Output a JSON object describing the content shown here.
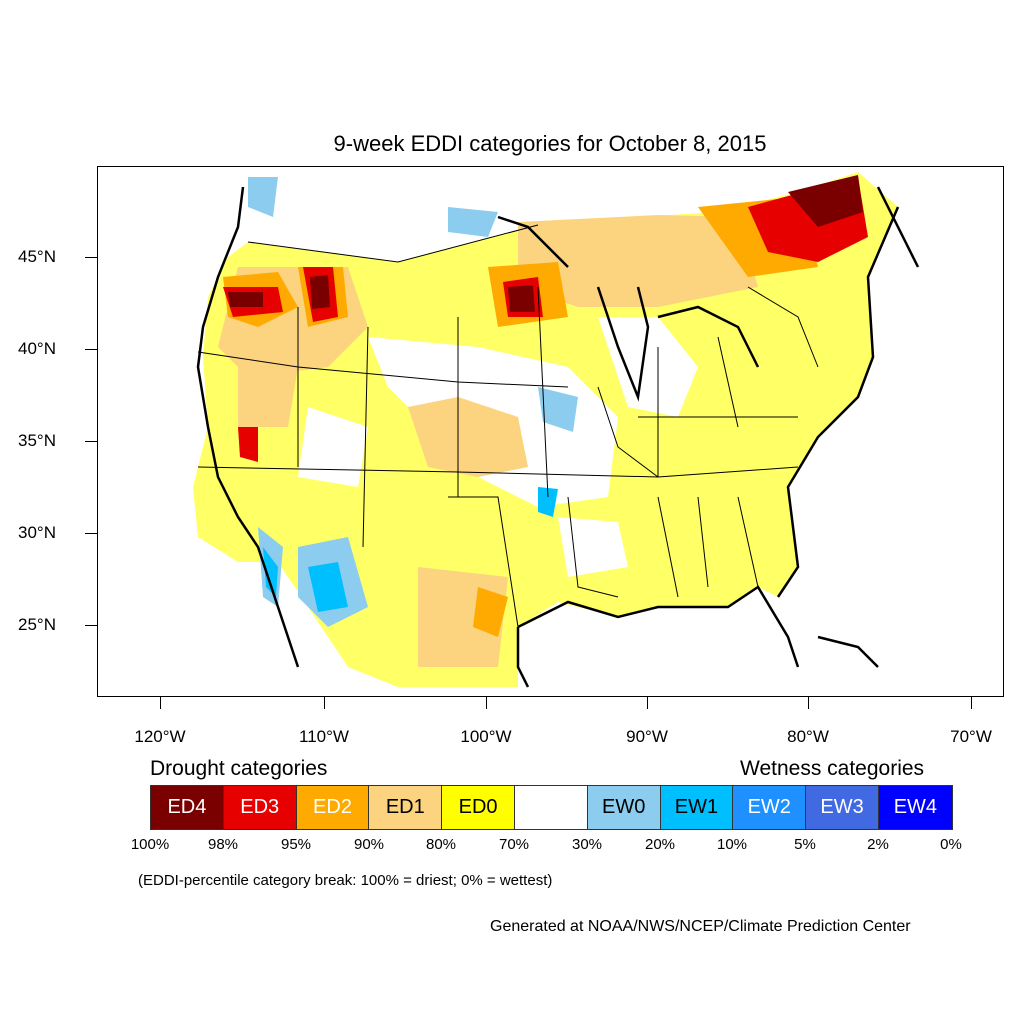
{
  "title": "9-week EDDI categories for October 8, 2015",
  "axes": {
    "lat_labels": [
      "45°N",
      "40°N",
      "35°N",
      "30°N",
      "25°N"
    ],
    "lon_labels": [
      "120°W",
      "110°W",
      "100°W",
      "90°W",
      "80°W",
      "70°W"
    ]
  },
  "legend": {
    "drought_heading": "Drought categories",
    "wetness_heading": "Wetness categories",
    "categories": [
      {
        "label": "ED4",
        "color": "#7a0000",
        "text_color": "#ffffff"
      },
      {
        "label": "ED3",
        "color": "#e60000",
        "text_color": "#ffffff"
      },
      {
        "label": "ED2",
        "color": "#ffaa00",
        "text_color": "#ffffff"
      },
      {
        "label": "ED1",
        "color": "#fcd37f",
        "text_color": "#000000"
      },
      {
        "label": "ED0",
        "color": "#ffff00",
        "text_color": "#000000"
      },
      {
        "label": "",
        "color": "#ffffff",
        "text_color": "#000000"
      },
      {
        "label": "EW0",
        "color": "#8ccdef",
        "text_color": "#000000"
      },
      {
        "label": "EW1",
        "color": "#00bfff",
        "text_color": "#000000"
      },
      {
        "label": "EW2",
        "color": "#1e90ff",
        "text_color": "#ffffff"
      },
      {
        "label": "EW3",
        "color": "#4169e1",
        "text_color": "#ffffff"
      },
      {
        "label": "EW4",
        "color": "#0000ff",
        "text_color": "#ffffff"
      }
    ],
    "percent_breaks": [
      "100%",
      "98%",
      "95%",
      "90%",
      "80%",
      "70%",
      "30%",
      "20%",
      "10%",
      "5%",
      "2%",
      "0%"
    ]
  },
  "note": "(EDDI-percentile category break: 100% = driest; 0% = wettest)",
  "credit": "Generated at NOAA/NWS/NCEP/Climate Prediction Center"
}
